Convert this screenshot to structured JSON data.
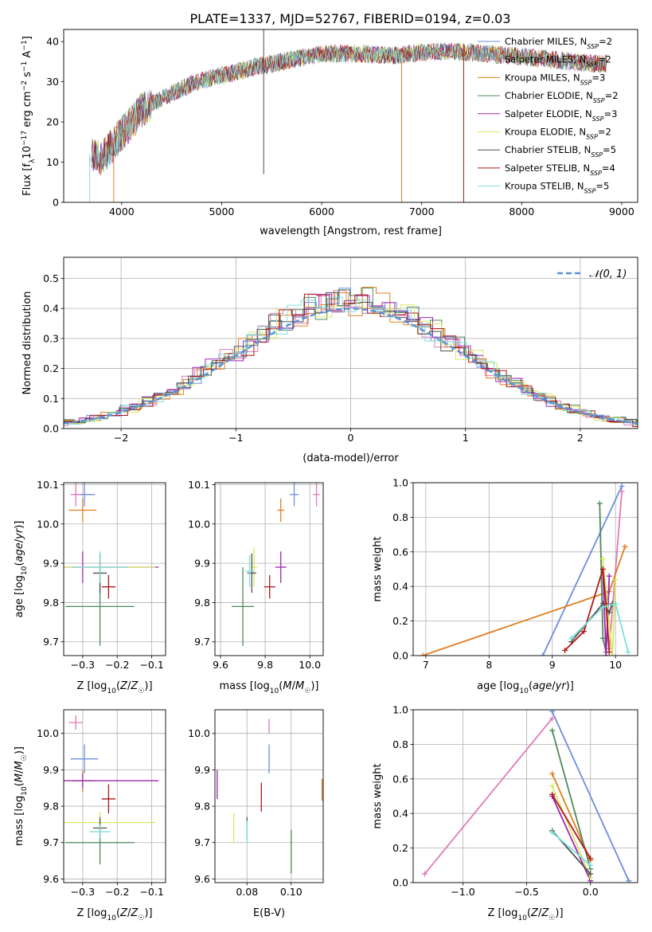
{
  "figure_title": "PLATE=1337, MJD=52767, FIBERID=0194, z=0.03",
  "colors": {
    "Chabrier MILES": "#6b8fdc",
    "Salpeter MILES": "#e07ab8",
    "Kroupa MILES": "#e07f1f",
    "Chabrier ELODIE": "#4f8a5a",
    "Salpeter ELODIE": "#9c27b0",
    "Kroupa ELODIE": "#d8e860",
    "Chabrier STELIB": "#505050",
    "Salpeter STELIB": "#b01818",
    "Kroupa STELIB": "#7fdedc"
  },
  "chart_data": [
    {
      "id": "spectrum",
      "type": "line",
      "title": "PLATE=1337, MJD=52767, FIBERID=0194, z=0.03",
      "xlabel": "wavelength [Angstrom, rest frame]",
      "ylabel": "Flux [f_λ 10^-17 erg cm^-2 s^-1 A^-1]",
      "xlim": [
        3420,
        9160
      ],
      "ylim": [
        0,
        43
      ],
      "xticks": [
        4000,
        5000,
        6000,
        7000,
        8000,
        9000
      ],
      "yticks": [
        0,
        10,
        20,
        30,
        40
      ],
      "grid": false,
      "legend_position": "top-right",
      "legend": [
        {
          "model": "Chabrier MILES",
          "n": "2"
        },
        {
          "model": "Salpeter MILES",
          "n": "2"
        },
        {
          "model": "Kroupa MILES",
          "n": "3"
        },
        {
          "model": "Chabrier ELODIE",
          "n": "2"
        },
        {
          "model": "Salpeter ELODIE",
          "n": "3"
        },
        {
          "model": "Kroupa ELODIE",
          "n": "2"
        },
        {
          "model": "Chabrier STELIB",
          "n": "5"
        },
        {
          "model": "Salpeter STELIB",
          "n": "4"
        },
        {
          "model": "Kroupa STELIB",
          "n": "5"
        }
      ],
      "continuum": {
        "x": [
          3680,
          3800,
          3900,
          4000,
          4100,
          4200,
          4300,
          4500,
          4700,
          4900,
          5100,
          5300,
          5500,
          5700,
          5900,
          6100,
          6300,
          6500,
          6700,
          6900,
          7100,
          7300,
          7500,
          7700,
          7900,
          8100,
          8300,
          8500,
          8700,
          8850
        ],
        "y": [
          12,
          11,
          14,
          17,
          20,
          23,
          24.5,
          27,
          29.5,
          31,
          32,
          33.5,
          34.5,
          35.5,
          36.5,
          37,
          37,
          36.8,
          36.5,
          37,
          37.5,
          37.6,
          37.3,
          36.8,
          36.5,
          36,
          35.5,
          35,
          34.5,
          34.5
        ]
      },
      "spikes": [
        {
          "x": 3680,
          "y0": 0,
          "y1": 12,
          "model": "Kroupa STELIB"
        },
        {
          "x": 3920,
          "y0": 0,
          "y1": 11,
          "model": "Kroupa MILES"
        },
        {
          "x": 5420,
          "y0": 7,
          "y1": 43,
          "model": "Chabrier STELIB"
        },
        {
          "x": 6800,
          "y0": 0,
          "y1": 35,
          "model": "Kroupa MILES"
        },
        {
          "x": 7420,
          "y0": 0,
          "y1": 37,
          "model": "Salpeter STELIB"
        }
      ]
    },
    {
      "id": "residuals",
      "type": "line",
      "xlabel": "(data-model)/error",
      "ylabel": "Normed distribution",
      "xlim": [
        -2.5,
        2.5
      ],
      "ylim": [
        0,
        0.57
      ],
      "xticks": [
        -2,
        -1,
        0,
        1,
        2
      ],
      "yticks": [
        0.0,
        0.1,
        0.2,
        0.3,
        0.4,
        0.5
      ],
      "grid": true,
      "legend": "𝒩(0, 1)",
      "legend_position": "top-right",
      "normal_curve": {
        "mean": 0,
        "sigma": 1
      }
    },
    {
      "id": "age_vs_Z",
      "type": "scatter",
      "xlabel": "Z [log10(Z/Z☉)]",
      "ylabel": "age  [log10(age/yr)]",
      "xlim": [
        -0.355,
        -0.06
      ],
      "ylim": [
        9.665,
        10.105
      ],
      "xticks": [
        -0.3,
        -0.2,
        -0.1
      ],
      "yticks": [
        9.7,
        9.8,
        9.9,
        10.0,
        10.1
      ],
      "grid": true,
      "points": [
        {
          "model": "Chabrier MILES",
          "x": -0.295,
          "y": 10.075,
          "xerr": 0.03,
          "yerr": 0.03
        },
        {
          "model": "Salpeter MILES",
          "x": -0.32,
          "y": 10.075,
          "xerr": 0.015,
          "yerr": 0.03
        },
        {
          "model": "Kroupa MILES",
          "x": -0.3,
          "y": 10.035,
          "xerr": 0.04,
          "yerr": 0.03
        },
        {
          "model": "Chabrier ELODIE",
          "x": -0.25,
          "y": 9.79,
          "xerr": 0.1,
          "yerr": 0.1
        },
        {
          "model": "Salpeter ELODIE",
          "x": -0.3,
          "y": 9.89,
          "xerr": 0.22,
          "yerr": 0.04
        },
        {
          "model": "Kroupa ELODIE",
          "x": -0.25,
          "y": 9.89,
          "xerr": 0.16,
          "yerr": 0.03
        },
        {
          "model": "Chabrier STELIB",
          "x": -0.25,
          "y": 9.875,
          "xerr": 0.02,
          "yerr": 0.05
        },
        {
          "model": "Salpeter STELIB",
          "x": -0.225,
          "y": 9.84,
          "xerr": 0.02,
          "yerr": 0.03
        },
        {
          "model": "Kroupa STELIB",
          "x": -0.25,
          "y": 9.89,
          "xerr": 0.08,
          "yerr": 0.04
        }
      ]
    },
    {
      "id": "age_vs_mass",
      "type": "scatter",
      "xlabel": "mass [log10(M/M☉)]",
      "ylabel": "",
      "xlim": [
        9.575,
        10.06
      ],
      "ylim": [
        9.665,
        10.105
      ],
      "xticks": [
        9.6,
        9.8,
        10.0
      ],
      "yticks": [
        9.7,
        9.8,
        9.9,
        10.0,
        10.1
      ],
      "grid": true,
      "points": [
        {
          "model": "Chabrier MILES",
          "x": 9.93,
          "y": 10.075,
          "xerr": 0.02,
          "yerr": 0.03
        },
        {
          "model": "Salpeter MILES",
          "x": 10.03,
          "y": 10.075,
          "xerr": 0.015,
          "yerr": 0.03
        },
        {
          "model": "Kroupa MILES",
          "x": 9.87,
          "y": 10.035,
          "xerr": 0.015,
          "yerr": 0.03
        },
        {
          "model": "Chabrier ELODIE",
          "x": 9.7,
          "y": 9.79,
          "xerr": 0.05,
          "yerr": 0.1
        },
        {
          "model": "Salpeter ELODIE",
          "x": 9.87,
          "y": 9.89,
          "xerr": 0.025,
          "yerr": 0.04
        },
        {
          "model": "Kroupa ELODIE",
          "x": 9.75,
          "y": 9.89,
          "xerr": 0.015,
          "yerr": 0.05
        },
        {
          "model": "Chabrier STELIB",
          "x": 9.74,
          "y": 9.875,
          "xerr": 0.02,
          "yerr": 0.05
        },
        {
          "model": "Salpeter STELIB",
          "x": 9.82,
          "y": 9.84,
          "xerr": 0.025,
          "yerr": 0.03
        },
        {
          "model": "Kroupa STELIB",
          "x": 9.73,
          "y": 9.88,
          "xerr": 0.02,
          "yerr": 0.04
        }
      ]
    },
    {
      "id": "mass_weight_vs_age",
      "type": "line",
      "xlabel": "age  [log10(age/yr)]",
      "ylabel": "mass weight",
      "xlim": [
        6.8,
        10.35
      ],
      "ylim": [
        0,
        1
      ],
      "xticks": [
        7,
        8,
        9,
        10
      ],
      "yticks": [
        0.0,
        0.2,
        0.4,
        0.6,
        0.8,
        1.0
      ],
      "grid": true,
      "series": [
        {
          "model": "Chabrier MILES",
          "x": [
            8.85,
            10.1
          ],
          "y": [
            0.0,
            0.98
          ]
        },
        {
          "model": "Salpeter MILES",
          "x": [
            9.9,
            10.1
          ],
          "y": [
            0.04,
            0.95
          ]
        },
        {
          "model": "Kroupa MILES",
          "x": [
            6.95,
            9.9,
            10.15
          ],
          "y": [
            0.0,
            0.37,
            0.63
          ]
        },
        {
          "model": "Chabrier ELODIE",
          "x": [
            9.75,
            9.8,
            9.85
          ],
          "y": [
            0.88,
            0.1,
            0.02
          ]
        },
        {
          "model": "Salpeter ELODIE",
          "x": [
            9.8,
            9.85,
            9.9
          ],
          "y": [
            0.5,
            0.0,
            0.46
          ]
        },
        {
          "model": "Kroupa ELODIE",
          "x": [
            9.8,
            9.95,
            10.0
          ],
          "y": [
            0.56,
            0.0,
            0.44
          ]
        },
        {
          "model": "Chabrier STELIB",
          "x": [
            9.3,
            9.8,
            9.9,
            9.95
          ],
          "y": [
            0.08,
            0.3,
            0.25,
            0.3
          ]
        },
        {
          "model": "Salpeter STELIB",
          "x": [
            9.2,
            9.5,
            9.8,
            9.85,
            9.9
          ],
          "y": [
            0.03,
            0.14,
            0.5,
            0.3,
            0.02
          ]
        },
        {
          "model": "Kroupa STELIB",
          "x": [
            9.3,
            9.8,
            10.0,
            10.2
          ],
          "y": [
            0.1,
            0.28,
            0.3,
            0.02
          ]
        }
      ]
    },
    {
      "id": "mass_vs_Z",
      "type": "scatter",
      "xlabel": "Z [log10(Z/Z☉)]",
      "ylabel": "mass [log10(M/M☉)]",
      "xlim": [
        -0.355,
        -0.06
      ],
      "ylim": [
        9.59,
        10.065
      ],
      "xticks": [
        -0.3,
        -0.2,
        -0.1
      ],
      "yticks": [
        9.6,
        9.7,
        9.8,
        9.9,
        10.0
      ],
      "grid": true,
      "points": [
        {
          "model": "Chabrier MILES",
          "x": -0.295,
          "y": 9.93,
          "xerr": 0.04,
          "yerr": 0.04
        },
        {
          "model": "Salpeter MILES",
          "x": -0.32,
          "y": 10.03,
          "xerr": 0.02,
          "yerr": 0.02
        },
        {
          "model": "Kroupa MILES",
          "x": -0.3,
          "y": 9.87,
          "xerr": 0.03,
          "yerr": 0.03
        },
        {
          "model": "Chabrier ELODIE",
          "x": -0.25,
          "y": 9.7,
          "xerr": 0.1,
          "yerr": 0.06
        },
        {
          "model": "Salpeter ELODIE",
          "x": -0.3,
          "y": 9.87,
          "xerr": 0.22,
          "yerr": 0.02
        },
        {
          "model": "Kroupa ELODIE",
          "x": -0.25,
          "y": 9.755,
          "xerr": 0.16,
          "yerr": 0.03
        },
        {
          "model": "Chabrier STELIB",
          "x": -0.25,
          "y": 9.74,
          "xerr": 0.02,
          "yerr": 0.03
        },
        {
          "model": "Salpeter STELIB",
          "x": -0.225,
          "y": 9.82,
          "xerr": 0.02,
          "yerr": 0.04
        },
        {
          "model": "Kroupa STELIB",
          "x": -0.25,
          "y": 9.73,
          "xerr": 0.03,
          "yerr": 0.02
        }
      ]
    },
    {
      "id": "mass_vs_ebv",
      "type": "scatter",
      "xlabel": "E(B-V)",
      "ylabel": "",
      "xlim": [
        0.0655,
        0.1145
      ],
      "ylim": [
        9.59,
        10.065
      ],
      "xticks": [
        0.08,
        0.1
      ],
      "yticks": [
        9.6,
        9.7,
        9.8,
        9.9,
        10.0
      ],
      "grid": true,
      "points": [
        {
          "model": "Chabrier MILES",
          "x": 0.09,
          "y": 9.93,
          "xerr": 0.0,
          "yerr": 0.04
        },
        {
          "model": "Salpeter MILES",
          "x": 0.09,
          "y": 10.02,
          "xerr": 0.0,
          "yerr": 0.02
        },
        {
          "model": "Kroupa MILES",
          "x": 0.114,
          "y": 9.845,
          "xerr": 0.0,
          "yerr": 0.03
        },
        {
          "model": "Chabrier ELODIE",
          "x": 0.1,
          "y": 9.675,
          "xerr": 0.0,
          "yerr": 0.06
        },
        {
          "model": "Salpeter ELODIE",
          "x": 0.0665,
          "y": 9.86,
          "xerr": 0.0,
          "yerr": 0.04
        },
        {
          "model": "Kroupa ELODIE",
          "x": 0.074,
          "y": 9.74,
          "xerr": 0.0,
          "yerr": 0.04
        },
        {
          "model": "Chabrier STELIB",
          "x": 0.08,
          "y": 9.74,
          "xerr": 0.0,
          "yerr": 0.03
        },
        {
          "model": "Salpeter STELIB",
          "x": 0.0865,
          "y": 9.825,
          "xerr": 0.0,
          "yerr": 0.04
        },
        {
          "model": "Kroupa STELIB",
          "x": 0.08,
          "y": 9.73,
          "xerr": 0.0,
          "yerr": 0.03
        }
      ]
    },
    {
      "id": "mass_weight_vs_Z",
      "type": "line",
      "xlabel": "Z [log10(Z/Z☉)]",
      "ylabel": "mass weight",
      "xlim": [
        -1.39,
        0.37
      ],
      "ylim": [
        0,
        1
      ],
      "xticks": [
        -1.0,
        -0.5,
        0.0
      ],
      "yticks": [
        0.0,
        0.2,
        0.4,
        0.6,
        0.8,
        1.0
      ],
      "grid": true,
      "series": [
        {
          "model": "Chabrier MILES",
          "x": [
            -0.3,
            0.3
          ],
          "y": [
            0.99,
            0.01
          ]
        },
        {
          "model": "Salpeter MILES",
          "x": [
            -1.3,
            -0.3
          ],
          "y": [
            0.05,
            0.95
          ]
        },
        {
          "model": "Kroupa MILES",
          "x": [
            -0.3,
            0.0
          ],
          "y": [
            0.63,
            0.13
          ]
        },
        {
          "model": "Chabrier ELODIE",
          "x": [
            -0.3,
            0.0
          ],
          "y": [
            0.88,
            0.08
          ]
        },
        {
          "model": "Salpeter ELODIE",
          "x": [
            -0.3,
            0.0
          ],
          "y": [
            0.5,
            0.01
          ]
        },
        {
          "model": "Kroupa ELODIE",
          "x": [
            -0.3,
            0.0
          ],
          "y": [
            0.56,
            0.03
          ]
        },
        {
          "model": "Chabrier STELIB",
          "x": [
            -0.3,
            0.0
          ],
          "y": [
            0.3,
            0.05
          ]
        },
        {
          "model": "Salpeter STELIB",
          "x": [
            -0.3,
            0.0
          ],
          "y": [
            0.51,
            0.14
          ]
        },
        {
          "model": "Kroupa STELIB",
          "x": [
            -0.3,
            0.0
          ],
          "y": [
            0.29,
            0.1
          ]
        }
      ]
    }
  ]
}
